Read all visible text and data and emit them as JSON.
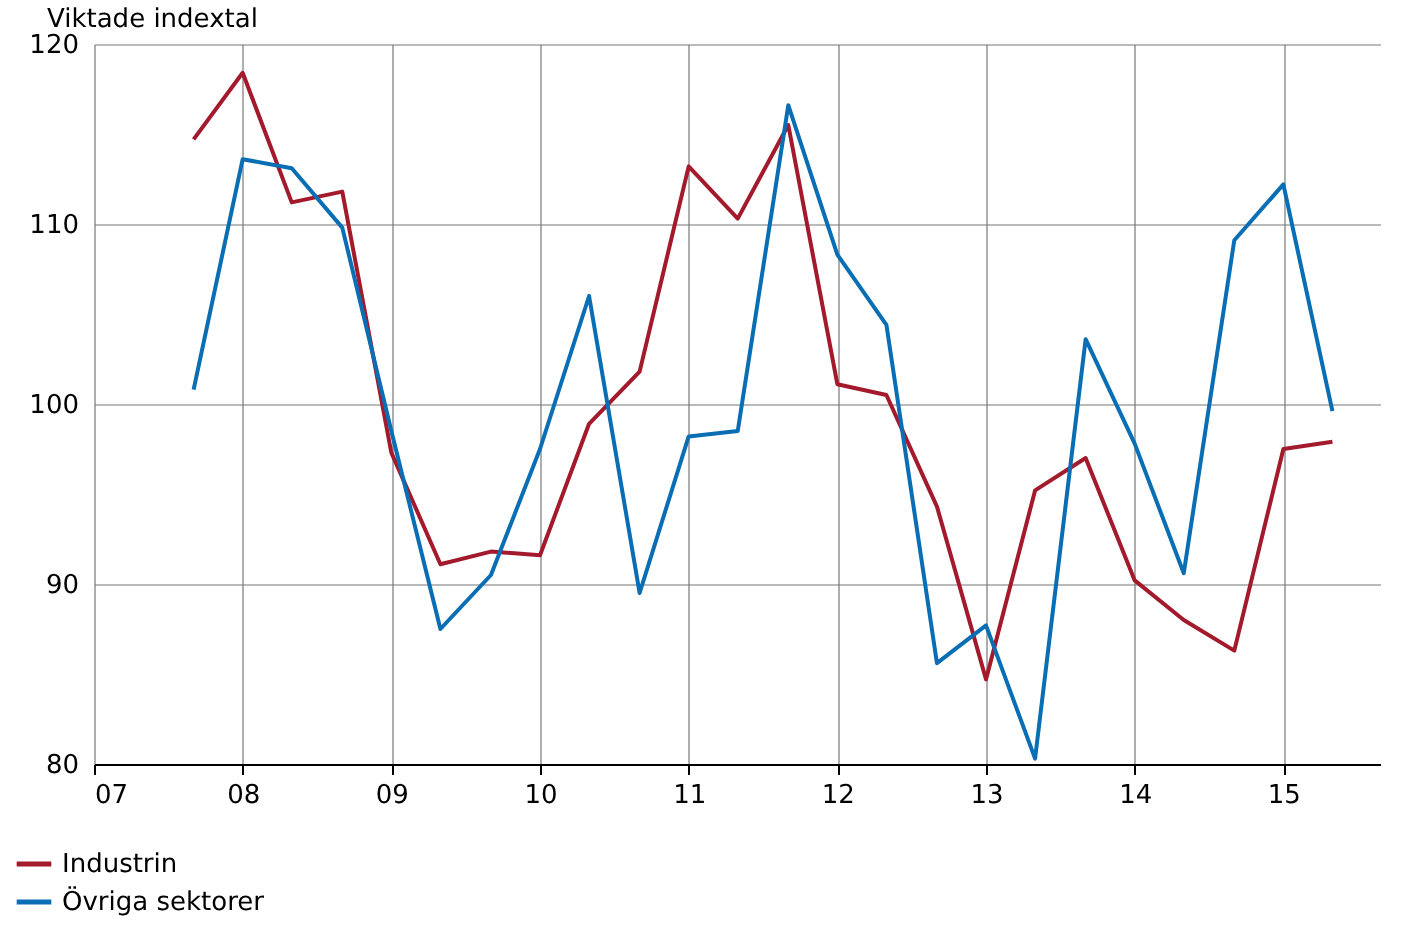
{
  "chart_data": {
    "type": "line",
    "ylabel": "Viktade indextal",
    "x": [
      7.67,
      8.0,
      8.33,
      8.67,
      9.0,
      9.33,
      9.67,
      10.0,
      10.33,
      10.67,
      11.0,
      11.33,
      11.67,
      12.0,
      12.33,
      12.67,
      13.0,
      13.33,
      13.67,
      14.0,
      14.33,
      14.67,
      15.0,
      15.33
    ],
    "series": [
      {
        "name": "Industrin",
        "color": "#a31a2c",
        "values": [
          114.7,
          118.4,
          111.2,
          111.8,
          97.3,
          91.1,
          91.8,
          91.6,
          98.9,
          101.8,
          113.2,
          110.3,
          115.5,
          101.1,
          100.5,
          94.3,
          84.7,
          95.2,
          97.0,
          90.2,
          88.0,
          86.3,
          97.5,
          97.9
        ]
      },
      {
        "name": "Övriga sektorer",
        "color": "#0a6eb4",
        "values": [
          100.8,
          113.6,
          113.1,
          109.8,
          98.5,
          87.5,
          90.5,
          97.5,
          106.0,
          89.5,
          98.2,
          98.5,
          116.6,
          108.3,
          104.4,
          85.6,
          87.7,
          80.3,
          103.6,
          97.8,
          90.6,
          109.1,
          112.2,
          99.6
        ]
      }
    ],
    "xlim": [
      7,
      15.65
    ],
    "xticks": [
      {
        "value": 7,
        "label": "07"
      },
      {
        "value": 8,
        "label": "08"
      },
      {
        "value": 9,
        "label": "09"
      },
      {
        "value": 10,
        "label": "10"
      },
      {
        "value": 11,
        "label": "11"
      },
      {
        "value": 12,
        "label": "12"
      },
      {
        "value": 13,
        "label": "13"
      },
      {
        "value": 14,
        "label": "14"
      },
      {
        "value": 15,
        "label": "15"
      }
    ],
    "ylim": [
      80,
      120
    ],
    "yticks": [
      80,
      90,
      100,
      110,
      120
    ],
    "grid": true,
    "legend": "bottom left",
    "marker": "none",
    "line_style": "solid"
  }
}
